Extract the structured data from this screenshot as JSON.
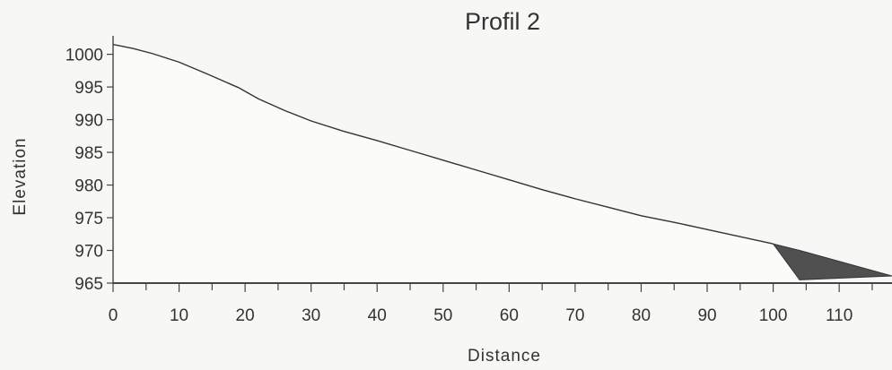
{
  "chart_data": {
    "type": "area",
    "title": "Profil 2",
    "xlabel": "Distance",
    "ylabel": "Elevation",
    "xlim": [
      0,
      118
    ],
    "ylim": [
      965,
      1002
    ],
    "grid": false,
    "x_ticks": [
      0,
      10,
      20,
      30,
      40,
      50,
      60,
      70,
      80,
      90,
      100,
      110
    ],
    "y_ticks": [
      965,
      970,
      975,
      980,
      985,
      990,
      995,
      1000
    ],
    "series": [
      {
        "values_x": [
          0,
          3,
          6,
          10,
          14,
          19,
          22,
          26,
          30,
          35,
          40,
          45,
          50,
          55,
          60,
          65,
          70,
          75,
          80,
          85,
          90,
          95,
          100
        ],
        "values_y": [
          1001.5,
          1000.9,
          1000.1,
          998.8,
          997.1,
          994.9,
          993.2,
          991.4,
          989.8,
          988.2,
          986.8,
          985.3,
          983.8,
          982.3,
          980.8,
          979.3,
          977.9,
          976.6,
          975.3,
          974.3,
          973.2,
          972.1,
          971.0
        ]
      }
    ],
    "shaded_region": {
      "x": [
        100,
        104,
        118
      ],
      "y_top": [
        971.0,
        970.0,
        966.1
      ],
      "y_bottom": [
        971.0,
        965.5,
        966.1
      ]
    },
    "colors": {
      "area_fill": "#fbfbfa",
      "line": "#333333",
      "axis": "#444444",
      "shaded": "#505050"
    }
  }
}
